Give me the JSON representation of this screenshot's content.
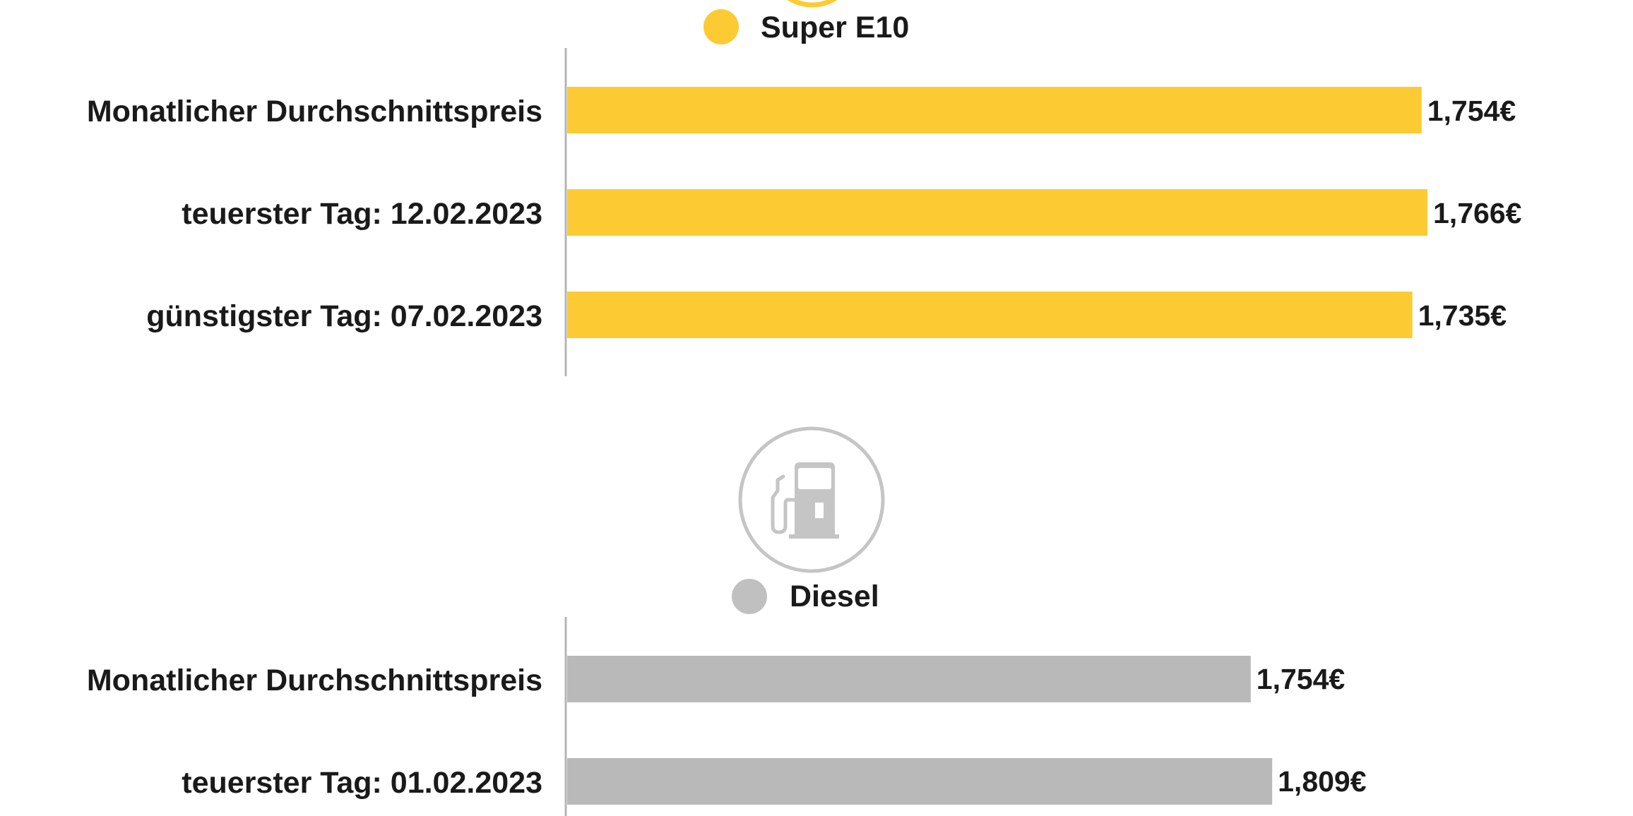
{
  "colors": {
    "super_e10": "#fccb33",
    "diesel": "#b9b9b9",
    "axis": "#b5b5b5"
  },
  "chart_data": [
    {
      "type": "bar",
      "orientation": "horizontal",
      "legend": "Super E10",
      "icon": "fuel-pump-icon",
      "categories": [
        "Monatlicher Durchschnittspreis",
        "teuerster Tag: 12.02.2023",
        "günstigster Tag: 07.02.2023"
      ],
      "values": [
        1.754,
        1.766,
        1.735
      ],
      "value_labels": [
        "1,754€",
        "1,766€",
        "1,735€"
      ],
      "xlim": [
        0,
        1.766
      ]
    },
    {
      "type": "bar",
      "orientation": "horizontal",
      "legend": "Diesel",
      "icon": "fuel-pump-icon",
      "categories": [
        "Monatlicher Durchschnittspreis",
        "teuerster Tag: 01.02.2023"
      ],
      "values": [
        1.754,
        1.809
      ],
      "value_labels": [
        "1,754€",
        "1,809€"
      ],
      "xlim": [
        0,
        1.945
      ]
    }
  ]
}
